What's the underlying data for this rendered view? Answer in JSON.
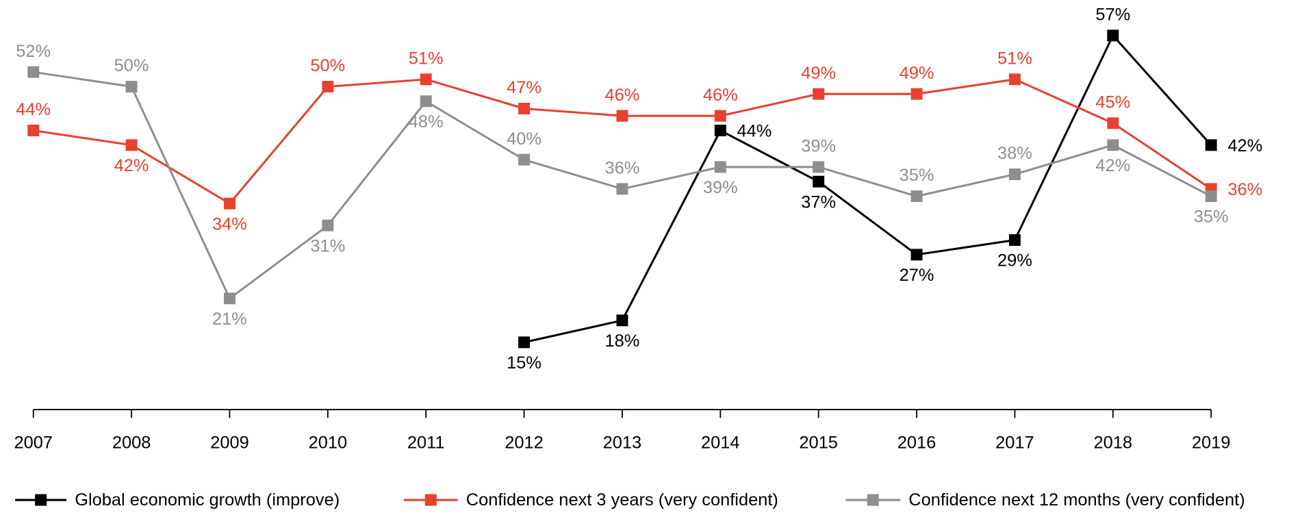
{
  "chart_data": {
    "type": "line",
    "categories": [
      "2007",
      "2008",
      "2009",
      "2010",
      "2011",
      "2012",
      "2013",
      "2014",
      "2015",
      "2016",
      "2017",
      "2018",
      "2019"
    ],
    "series": [
      {
        "name": "Global economic growth (improve)",
        "color": "#000000",
        "values": [
          null,
          null,
          null,
          null,
          null,
          15,
          18,
          44,
          37,
          27,
          29,
          57,
          42
        ],
        "value_labels": [
          null,
          null,
          null,
          null,
          null,
          "15%",
          "18%",
          "44%",
          "37%",
          "27%",
          "29%",
          "57%",
          "42%"
        ]
      },
      {
        "name": "Confidence next 3 years (very confident)",
        "color": "#e8412f",
        "values": [
          44,
          42,
          34,
          50,
          51,
          47,
          46,
          46,
          49,
          49,
          51,
          45,
          36
        ],
        "value_labels": [
          "44%",
          "42%",
          "34%",
          "50%",
          "51%",
          "47%",
          "46%",
          "46%",
          "49%",
          "49%",
          "51%",
          "45%",
          "36%"
        ]
      },
      {
        "name": "Confidence next 12 months (very confident)",
        "color": "#8e8e8e",
        "values": [
          52,
          50,
          21,
          31,
          48,
          40,
          36,
          39,
          39,
          35,
          38,
          42,
          35
        ],
        "value_labels": [
          "52%",
          "50%",
          "21%",
          "31%",
          "48%",
          "40%",
          "36%",
          "39%",
          "39%",
          "35%",
          "38%",
          "42%",
          "35%"
        ]
      }
    ]
  }
}
